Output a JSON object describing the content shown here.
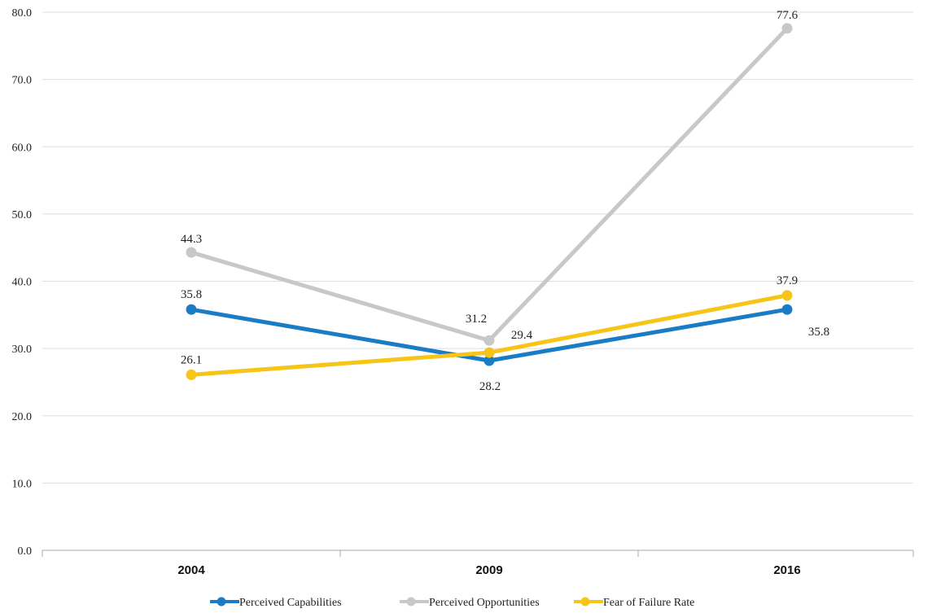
{
  "chart_data": {
    "type": "line",
    "categories": [
      "2004",
      "2009",
      "2016"
    ],
    "ylim": [
      0,
      80
    ],
    "yticks": [
      "0.0",
      "10.0",
      "20.0",
      "30.0",
      "40.0",
      "50.0",
      "60.0",
      "70.0",
      "80.0"
    ],
    "grid": true,
    "legend_position": "bottom",
    "series": [
      {
        "name": "Perceived Capabilities",
        "color": "#1a7cc4",
        "values": [
          35.8,
          28.2,
          35.8
        ],
        "labels": [
          "35.8",
          "28.2",
          "35.8"
        ]
      },
      {
        "name": "Perceived Opportunities",
        "color": "#c8c8c8",
        "values": [
          44.3,
          31.2,
          77.6
        ],
        "labels": [
          "44.3",
          "31.2",
          "77.6"
        ]
      },
      {
        "name": "Fear of Failure Rate",
        "color": "#f7c518",
        "values": [
          26.1,
          29.4,
          37.9
        ],
        "labels": [
          "26.1",
          "29.4",
          "37.9"
        ]
      }
    ]
  }
}
